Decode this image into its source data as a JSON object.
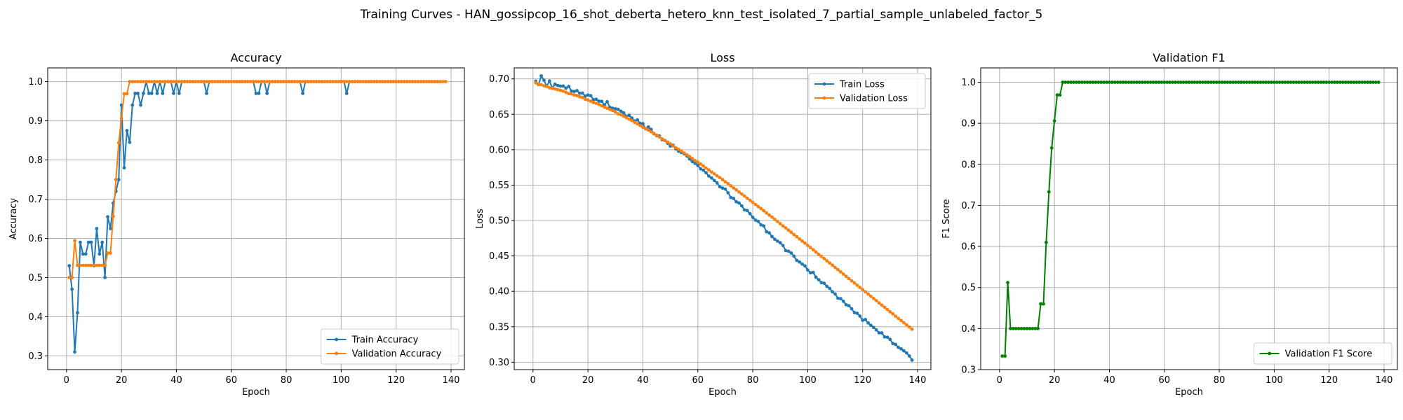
{
  "suptitle": "Training Curves - HAN_gossipcop_16_shot_deberta_hetero_knn_test_isolated_7_partial_sample_unlabeled_factor_5",
  "colors": {
    "train": "#1f77b4",
    "validation": "#ff7f0e",
    "f1": "#008000",
    "grid": "#b0b0b0"
  },
  "chart_data": [
    {
      "type": "line",
      "title": "Accuracy",
      "xlabel": "Epoch",
      "ylabel": "Accuracy",
      "xlim": [
        -6.85,
        144.85
      ],
      "ylim": [
        0.265,
        1.035
      ],
      "xticks": [
        0,
        20,
        40,
        60,
        80,
        100,
        120,
        140
      ],
      "yticks": [
        0.3,
        0.4,
        0.5,
        0.6,
        0.7,
        0.8,
        0.9,
        1.0
      ],
      "grid": true,
      "legend": "lower-right",
      "series": [
        {
          "name": "Train Accuracy",
          "color": "#1f77b4",
          "x_start": 1,
          "values": [
            0.53,
            0.47,
            0.31,
            0.41,
            0.59,
            0.56,
            0.56,
            0.59,
            0.59,
            0.53,
            0.625,
            0.56,
            0.59,
            0.5,
            0.655,
            0.625,
            0.69,
            0.72,
            0.75,
            0.94,
            0.78,
            0.875,
            0.845,
            0.94,
            0.97,
            0.97,
            0.94,
            0.97,
            1.0,
            0.97,
            0.97,
            1.0,
            0.97,
            1.0,
            0.97,
            1.0,
            1.0,
            1.0,
            0.97,
            1.0,
            0.97,
            1.0,
            1.0,
            1.0,
            1.0,
            1.0,
            1.0,
            1.0,
            1.0,
            1.0,
            0.97,
            1.0,
            1.0,
            1.0,
            1.0,
            1.0,
            1.0,
            1.0,
            1.0,
            1.0,
            1.0,
            1.0,
            1.0,
            1.0,
            1.0,
            1.0,
            1.0,
            1.0,
            0.97,
            0.97,
            1.0,
            1.0,
            0.97,
            1.0,
            1.0,
            1.0,
            1.0,
            1.0,
            1.0,
            1.0,
            1.0,
            1.0,
            1.0,
            1.0,
            1.0,
            0.97,
            1.0,
            1.0,
            1.0,
            1.0,
            1.0,
            1.0,
            1.0,
            1.0,
            1.0,
            1.0,
            1.0,
            1.0,
            1.0,
            1.0,
            1.0,
            0.97,
            1.0,
            1.0,
            1.0,
            1.0,
            1.0,
            1.0,
            1.0,
            1.0,
            1.0,
            1.0,
            1.0,
            1.0,
            1.0,
            1.0,
            1.0,
            1.0,
            1.0,
            1.0,
            1.0,
            1.0,
            1.0,
            1.0,
            1.0,
            1.0,
            1.0,
            1.0,
            1.0,
            1.0,
            1.0,
            1.0,
            1.0,
            1.0,
            1.0,
            1.0
          ]
        },
        {
          "name": "Validation Accuracy",
          "color": "#ff7f0e",
          "x_start": 1,
          "values": [
            0.5,
            0.5,
            0.594,
            0.531,
            0.531,
            0.531,
            0.531,
            0.531,
            0.531,
            0.531,
            0.531,
            0.531,
            0.531,
            0.531,
            0.5625,
            0.5625,
            0.656,
            0.75,
            0.844,
            0.906,
            0.969,
            0.969,
            1.0,
            1.0,
            1.0,
            1.0,
            1.0,
            1.0,
            1.0,
            1.0,
            1.0,
            1.0,
            1.0,
            1.0,
            1.0,
            1.0,
            1.0,
            1.0,
            1.0,
            1.0,
            1.0,
            1.0,
            1.0,
            1.0,
            1.0,
            1.0,
            1.0,
            1.0,
            1.0,
            1.0,
            1.0,
            1.0,
            1.0,
            1.0,
            1.0,
            1.0,
            1.0,
            1.0,
            1.0,
            1.0,
            1.0,
            1.0,
            1.0,
            1.0,
            1.0,
            1.0,
            1.0,
            1.0,
            1.0,
            1.0,
            1.0,
            1.0,
            1.0,
            1.0,
            1.0,
            1.0,
            1.0,
            1.0,
            1.0,
            1.0,
            1.0,
            1.0,
            1.0,
            1.0,
            1.0,
            1.0,
            1.0,
            1.0,
            1.0,
            1.0,
            1.0,
            1.0,
            1.0,
            1.0,
            1.0,
            1.0,
            1.0,
            1.0,
            1.0,
            1.0,
            1.0,
            1.0,
            1.0,
            1.0,
            1.0,
            1.0,
            1.0,
            1.0,
            1.0,
            1.0,
            1.0,
            1.0,
            1.0,
            1.0,
            1.0,
            1.0,
            1.0,
            1.0,
            1.0,
            1.0,
            1.0,
            1.0,
            1.0,
            1.0,
            1.0,
            1.0,
            1.0,
            1.0,
            1.0,
            1.0,
            1.0,
            1.0,
            1.0,
            1.0,
            1.0,
            1.0,
            1.0,
            1.0
          ]
        }
      ]
    },
    {
      "type": "line",
      "title": "Loss",
      "xlabel": "Epoch",
      "ylabel": "Loss",
      "xlim": [
        -6.85,
        144.85
      ],
      "ylim": [
        0.2895,
        0.7155
      ],
      "xticks": [
        0,
        20,
        40,
        60,
        80,
        100,
        120,
        140
      ],
      "yticks": [
        0.3,
        0.35,
        0.4,
        0.45,
        0.5,
        0.55,
        0.6,
        0.65,
        0.7
      ],
      "grid": true,
      "legend": "upper-right",
      "series": [
        {
          "name": "Train Loss",
          "color": "#1f77b4",
          "x_start": 1,
          "values": [
            0.6967,
            0.692,
            0.7042,
            0.6979,
            0.6897,
            0.6969,
            0.6871,
            0.6924,
            0.6907,
            0.6898,
            0.6899,
            0.6869,
            0.6893,
            0.6829,
            0.6823,
            0.6834,
            0.6797,
            0.6799,
            0.6757,
            0.6771,
            0.6763,
            0.6707,
            0.6712,
            0.6685,
            0.6683,
            0.6632,
            0.6678,
            0.6598,
            0.6585,
            0.6578,
            0.6569,
            0.6543,
            0.6521,
            0.6467,
            0.6486,
            0.6446,
            0.6405,
            0.6421,
            0.6371,
            0.6368,
            0.6294,
            0.6321,
            0.6286,
            0.6225,
            0.6198,
            0.6194,
            0.6141,
            0.613,
            0.6092,
            0.6051,
            0.6063,
            0.601,
            0.5978,
            0.5961,
            0.5943,
            0.5911,
            0.5869,
            0.5831,
            0.5807,
            0.5777,
            0.573,
            0.5711,
            0.5675,
            0.5628,
            0.56,
            0.5566,
            0.5531,
            0.5477,
            0.5458,
            0.5444,
            0.5391,
            0.5325,
            0.5312,
            0.5265,
            0.5248,
            0.5207,
            0.515,
            0.5141,
            0.5096,
            0.5044,
            0.5005,
            0.4988,
            0.4939,
            0.4923,
            0.4842,
            0.4826,
            0.4774,
            0.4736,
            0.4709,
            0.4686,
            0.4647,
            0.4576,
            0.4567,
            0.4541,
            0.4497,
            0.4438,
            0.4414,
            0.4384,
            0.4359,
            0.4302,
            0.4262,
            0.4267,
            0.4201,
            0.4164,
            0.4123,
            0.4114,
            0.407,
            0.4041,
            0.3993,
            0.3962,
            0.3903,
            0.3897,
            0.3859,
            0.3811,
            0.3797,
            0.3754,
            0.37,
            0.369,
            0.3651,
            0.3591,
            0.3602,
            0.3554,
            0.352,
            0.349,
            0.3455,
            0.3414,
            0.3412,
            0.3357,
            0.3352,
            0.3321,
            0.3263,
            0.3251,
            0.3209,
            0.3188,
            0.316,
            0.313,
            0.3088,
            0.3029
          ]
        },
        {
          "name": "Validation Loss",
          "color": "#ff7f0e",
          "x_start": 1,
          "values": [
            0.6943,
            0.6923,
            0.6917,
            0.6901,
            0.6894,
            0.6874,
            0.6867,
            0.6858,
            0.6847,
            0.6839,
            0.6827,
            0.681,
            0.6793,
            0.6786,
            0.6773,
            0.6764,
            0.6747,
            0.6737,
            0.6714,
            0.6701,
            0.6685,
            0.6667,
            0.6655,
            0.6638,
            0.6621,
            0.6601,
            0.6585,
            0.6568,
            0.6553,
            0.6532,
            0.6506,
            0.6493,
            0.6474,
            0.6451,
            0.6431,
            0.6411,
            0.6386,
            0.6366,
            0.6341,
            0.6318,
            0.6298,
            0.6276,
            0.6252,
            0.623,
            0.6205,
            0.6178,
            0.6152,
            0.6131,
            0.6108,
            0.6083,
            0.6053,
            0.6028,
            0.6005,
            0.5981,
            0.5953,
            0.5928,
            0.5903,
            0.5876,
            0.5846,
            0.5823,
            0.5798,
            0.577,
            0.574,
            0.5714,
            0.5685,
            0.5659,
            0.5631,
            0.5606,
            0.5578,
            0.5546,
            0.5521,
            0.549,
            0.546,
            0.5433,
            0.5402,
            0.5373,
            0.5346,
            0.5314,
            0.5286,
            0.5256,
            0.5226,
            0.5196,
            0.5169,
            0.5138,
            0.5106,
            0.5078,
            0.5048,
            0.5016,
            0.4986,
            0.4955,
            0.4924,
            0.4896,
            0.4864,
            0.4834,
            0.4802,
            0.4773,
            0.474,
            0.471,
            0.468,
            0.4648,
            0.4618,
            0.4587,
            0.4555,
            0.4523,
            0.4493,
            0.4462,
            0.443,
            0.44,
            0.437,
            0.4337,
            0.4306,
            0.4275,
            0.4244,
            0.4212,
            0.4181,
            0.4148,
            0.4119,
            0.4087,
            0.4056,
            0.4024,
            0.3993,
            0.3962,
            0.393,
            0.3899,
            0.3868,
            0.3835,
            0.3805,
            0.3775,
            0.3743,
            0.3711,
            0.3682,
            0.3649,
            0.3618,
            0.3588,
            0.3558,
            0.3526,
            0.3497,
            0.3465
          ]
        }
      ]
    },
    {
      "type": "line",
      "title": "Validation F1",
      "xlabel": "Epoch",
      "ylabel": "F1 Score",
      "xlim": [
        -6.85,
        144.85
      ],
      "ylim": [
        0.3,
        1.035
      ],
      "xticks": [
        0,
        20,
        40,
        60,
        80,
        100,
        120,
        140
      ],
      "yticks": [
        0.3,
        0.4,
        0.5,
        0.6,
        0.7,
        0.8,
        0.9,
        1.0
      ],
      "grid": true,
      "legend": "lower-right",
      "series": [
        {
          "name": "Validation F1 Score",
          "color": "#008000",
          "x_start": 1,
          "values": [
            0.333,
            0.333,
            0.512,
            0.4,
            0.4,
            0.4,
            0.4,
            0.4,
            0.4,
            0.4,
            0.4,
            0.4,
            0.4,
            0.4,
            0.46,
            0.46,
            0.61,
            0.733,
            0.84,
            0.906,
            0.969,
            0.969,
            1.0,
            1.0,
            1.0,
            1.0,
            1.0,
            1.0,
            1.0,
            1.0,
            1.0,
            1.0,
            1.0,
            1.0,
            1.0,
            1.0,
            1.0,
            1.0,
            1.0,
            1.0,
            1.0,
            1.0,
            1.0,
            1.0,
            1.0,
            1.0,
            1.0,
            1.0,
            1.0,
            1.0,
            1.0,
            1.0,
            1.0,
            1.0,
            1.0,
            1.0,
            1.0,
            1.0,
            1.0,
            1.0,
            1.0,
            1.0,
            1.0,
            1.0,
            1.0,
            1.0,
            1.0,
            1.0,
            1.0,
            1.0,
            1.0,
            1.0,
            1.0,
            1.0,
            1.0,
            1.0,
            1.0,
            1.0,
            1.0,
            1.0,
            1.0,
            1.0,
            1.0,
            1.0,
            1.0,
            1.0,
            1.0,
            1.0,
            1.0,
            1.0,
            1.0,
            1.0,
            1.0,
            1.0,
            1.0,
            1.0,
            1.0,
            1.0,
            1.0,
            1.0,
            1.0,
            1.0,
            1.0,
            1.0,
            1.0,
            1.0,
            1.0,
            1.0,
            1.0,
            1.0,
            1.0,
            1.0,
            1.0,
            1.0,
            1.0,
            1.0,
            1.0,
            1.0,
            1.0,
            1.0,
            1.0,
            1.0,
            1.0,
            1.0,
            1.0,
            1.0,
            1.0,
            1.0,
            1.0,
            1.0,
            1.0,
            1.0,
            1.0,
            1.0,
            1.0,
            1.0,
            1.0,
            1.0
          ]
        }
      ]
    }
  ]
}
